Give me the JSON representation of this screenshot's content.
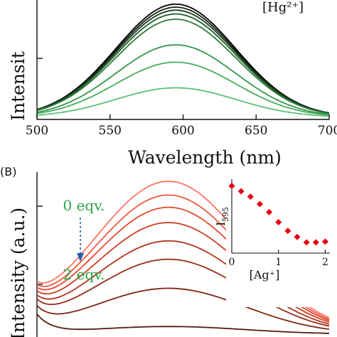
{
  "chart_data": [
    {
      "type": "line",
      "panel": "A",
      "title": "",
      "xlabel": "Wavelength (nm)",
      "ylabel": "Intensit",
      "annotation": "[Hg²⁺]",
      "xlim": [
        500,
        700
      ],
      "ylim": [
        0,
        1.2
      ],
      "x_ticks": [
        "500",
        "550",
        "600",
        "650",
        "700"
      ],
      "colors": [
        "#000000",
        "#0c1f0e",
        "#16391b",
        "#1f5a2a",
        "#2a7a3a",
        "#35964a",
        "#44ad5c",
        "#5cbf72"
      ],
      "peak_center": 595,
      "peak_width": 41,
      "baseline": 0.03,
      "series": [
        {
          "peak": 1.5
        },
        {
          "peak": 1.46
        },
        {
          "peak": 1.42
        },
        {
          "peak": 1.37
        },
        {
          "peak": 1.3
        },
        {
          "peak": 0.96
        },
        {
          "peak": 0.73
        },
        {
          "peak": 0.39
        }
      ]
    },
    {
      "type": "line",
      "panel": "B",
      "panel_label": "(B)",
      "ylabel": "Intensity (a.u.)",
      "ylim": [
        0,
        1.05
      ],
      "peak_center": 590,
      "peak_width": 52,
      "colors": [
        "#ff7461",
        "#f2573e",
        "#e3492d",
        "#cc3d22",
        "#b1341b",
        "#952c16",
        "#7a2612",
        "#561a0c"
      ],
      "series": [
        {
          "peak": 1.0
        },
        {
          "peak": 0.91
        },
        {
          "peak": 0.83
        },
        {
          "peak": 0.73
        },
        {
          "peak": 0.61
        },
        {
          "peak": 0.49
        },
        {
          "peak": 0.3
        },
        {
          "peak": 0.05
        }
      ],
      "eqv_start": "0 eqv.",
      "eqv_end": "2 eqv.",
      "inset": {
        "type": "scatter",
        "ylabel": "I",
        "ylabel_sub": "595",
        "xlabel": "[Ag⁺]",
        "xlim": [
          0,
          2.1
        ],
        "ylim": [
          0,
          1.1
        ],
        "x_ticks": [
          "0",
          "1",
          "2"
        ],
        "x": [
          0,
          0.2,
          0.4,
          0.6,
          0.8,
          1.0,
          1.2,
          1.4,
          1.6,
          1.8,
          2.0
        ],
        "y": [
          1.0,
          0.92,
          0.84,
          0.73,
          0.61,
          0.46,
          0.33,
          0.24,
          0.16,
          0.16,
          0.17
        ],
        "marker_color": "#e50012"
      }
    }
  ]
}
